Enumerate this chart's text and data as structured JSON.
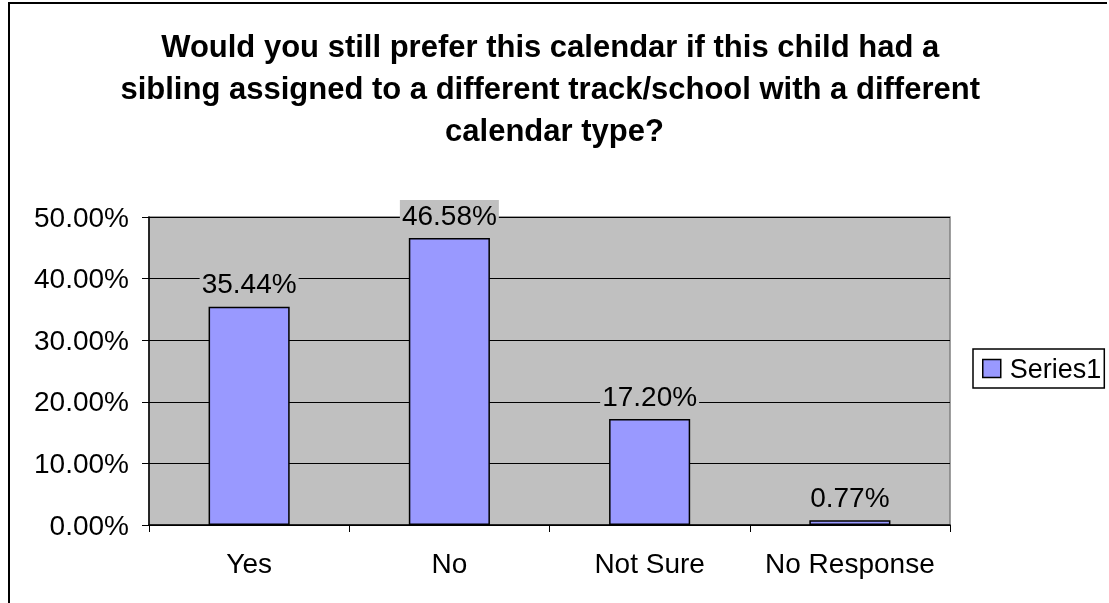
{
  "chart_data": {
    "type": "bar",
    "title": "Would you still prefer this calendar if this child had a sibling assigned to a different track/school with a different calendar type?",
    "categories": [
      "Yes",
      "No",
      "Not Sure",
      "No Response"
    ],
    "series": [
      {
        "name": "Series1",
        "color": "#9999ff",
        "values": [
          35.44,
          46.58,
          17.2,
          0.77
        ],
        "value_labels": [
          "35.44%",
          "46.58%",
          "17.20%",
          "0.77%"
        ]
      }
    ],
    "ylim": [
      0,
      50
    ],
    "yticks": [
      {
        "value": 0,
        "label": "0.00%"
      },
      {
        "value": 10,
        "label": "10.00%"
      },
      {
        "value": 20,
        "label": "20.00%"
      },
      {
        "value": 30,
        "label": "30.00%"
      },
      {
        "value": 40,
        "label": "40.00%"
      },
      {
        "value": 50,
        "label": "50.00%"
      }
    ],
    "grid": "y",
    "legend": "right"
  }
}
